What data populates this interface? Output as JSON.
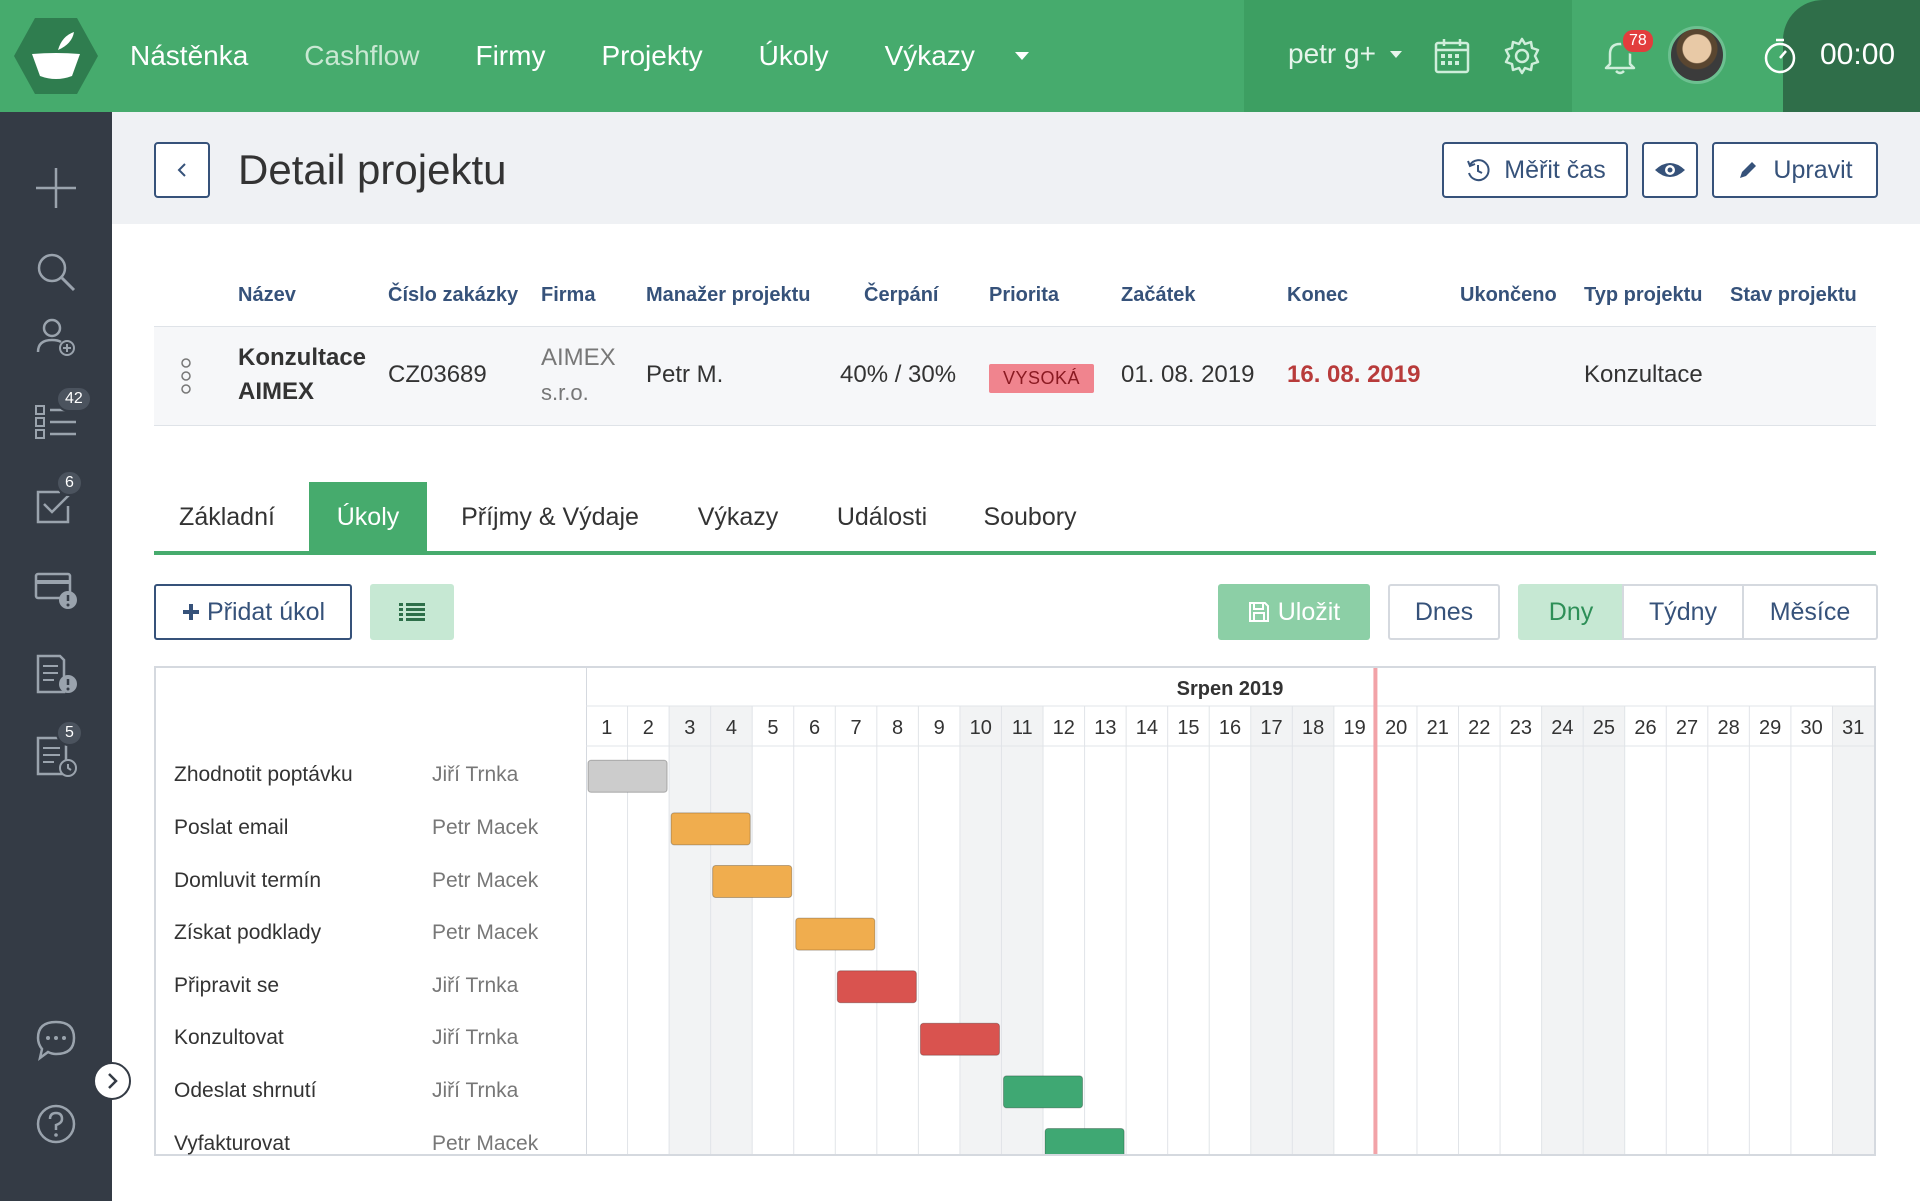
{
  "nav": {
    "items": [
      {
        "label": "Nástěnka",
        "muted": false
      },
      {
        "label": "Cashflow",
        "muted": true
      },
      {
        "label": "Firmy",
        "muted": false
      },
      {
        "label": "Projekty",
        "muted": false
      },
      {
        "label": "Úkoly",
        "muted": false
      },
      {
        "label": "Výkazy",
        "muted": false
      }
    ],
    "user": "petr g+",
    "notifications": "78",
    "timer": "00:00"
  },
  "sidebar": {
    "tasks_badge": "42",
    "checks_badge": "6",
    "reports_badge": "5"
  },
  "header": {
    "title": "Detail projektu",
    "track_time_label": "Měřit čas",
    "edit_label": "Upravit"
  },
  "project": {
    "columns": [
      "Název",
      "Číslo zakázky",
      "Firma",
      "Manažer projektu",
      "Čerpání",
      "Priorita",
      "Začátek",
      "Konec",
      "Ukončeno",
      "Typ projektu",
      "Stav projektu"
    ],
    "name_line1": "Konzultace",
    "name_line2": "AIMEX",
    "order_no": "CZ03689",
    "company_line1": "AIMEX",
    "company_line2": "s.r.o.",
    "manager": "Petr M.",
    "usage": "40% / 30%",
    "priority": "VYSOKÁ",
    "start": "01. 08. 2019",
    "end": "16. 08. 2019",
    "type": "Konzultace"
  },
  "tabs": [
    "Základní",
    "Úkoly",
    "Příjmy & Výdaje",
    "Výkazy",
    "Události",
    "Soubory"
  ],
  "toolbar": {
    "add_task": "Přidat úkol",
    "save": "Uložit",
    "today": "Dnes",
    "views": [
      "Dny",
      "Týdny",
      "Měsíce"
    ]
  },
  "gantt": {
    "month": "Srpen 2019",
    "days": 31,
    "today_day": 19,
    "tasks": [
      {
        "name": "Zhodnotit poptávku",
        "assignee": "Jiří Trnka",
        "start": 1,
        "end": 2,
        "color": "#cccccc"
      },
      {
        "name": "Poslat email",
        "assignee": "Petr Macek",
        "start": 3,
        "end": 4,
        "color": "#f0ad4e"
      },
      {
        "name": "Domluvit termín",
        "assignee": "Petr Macek",
        "start": 4,
        "end": 5,
        "color": "#f0ad4e"
      },
      {
        "name": "Získat podklady",
        "assignee": "Petr Macek",
        "start": 6,
        "end": 7,
        "color": "#f0ad4e"
      },
      {
        "name": "Připravit se",
        "assignee": "Jiří Trnka",
        "start": 7,
        "end": 8,
        "color": "#d9534f"
      },
      {
        "name": "Konzultovat",
        "assignee": "Jiří Trnka",
        "start": 9,
        "end": 10,
        "color": "#d9534f"
      },
      {
        "name": "Odeslat shrnutí",
        "assignee": "Jiří Trnka",
        "start": 11,
        "end": 12,
        "color": "#3fa873"
      },
      {
        "name": "Vyfakturovat",
        "assignee": "Petr Macek",
        "start": 12,
        "end": 13,
        "color": "#3fa873"
      }
    ]
  }
}
